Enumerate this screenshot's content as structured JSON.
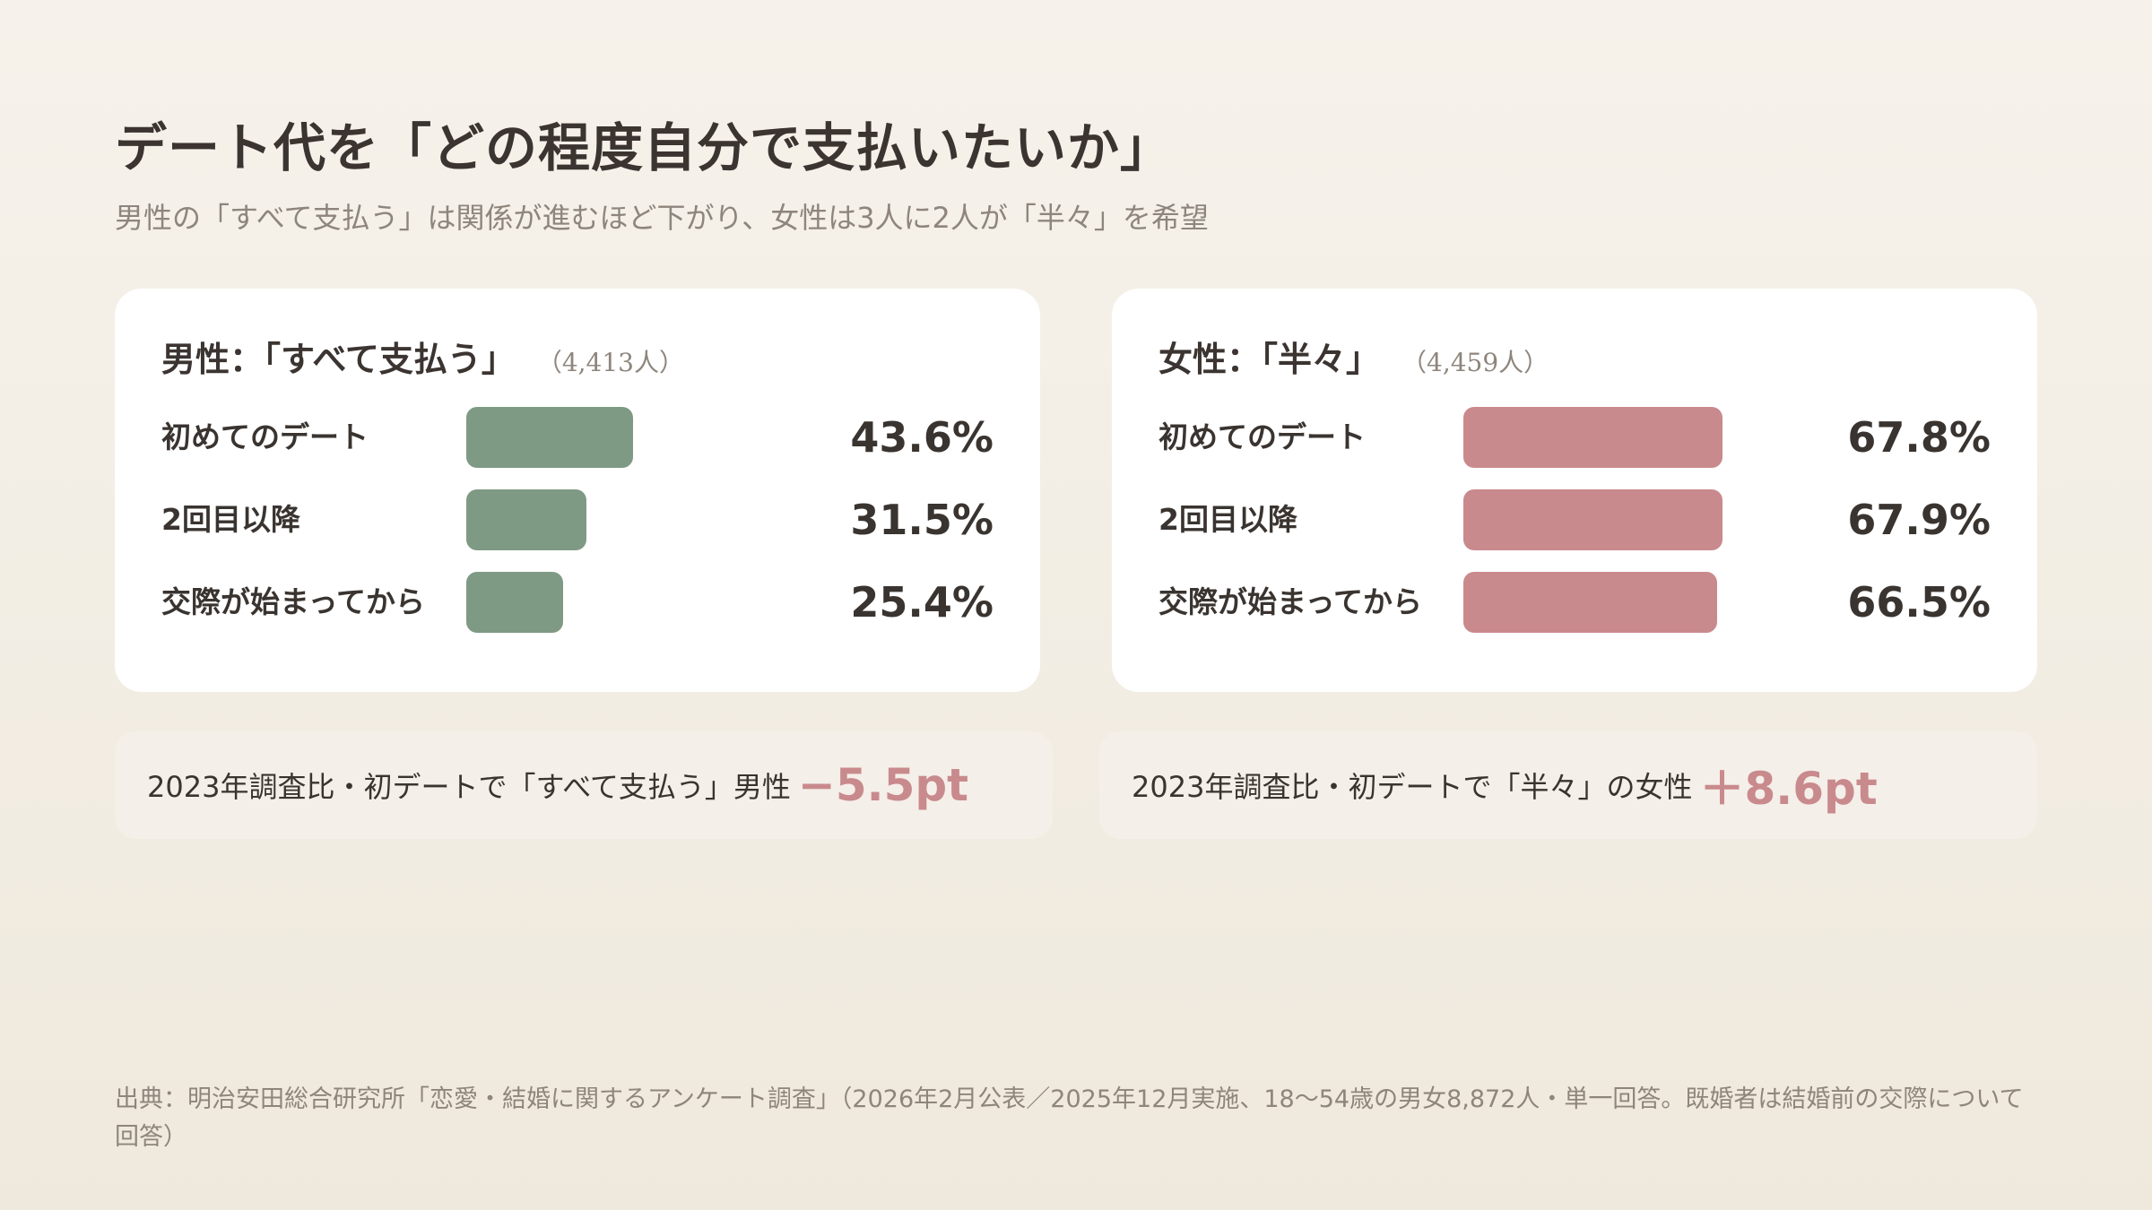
{
  "title": "デート代を「どの程度自分で支払いたいか」",
  "subtitle": "男性の「すべて支払う」は関係が進むほど下がり、女性は3人に2人が「半々」を希望",
  "colors": {
    "male_bar": "#7f9a84",
    "female_bar": "#c98a8d",
    "delta": "#c98a8d"
  },
  "chart_data": [
    {
      "type": "bar",
      "title": "男性：「すべて支払う」",
      "n_label": "（4,413人）",
      "categories": [
        "初めてのデート",
        "2回目以降",
        "交際が始まってから"
      ],
      "values": [
        43.6,
        31.5,
        25.4
      ],
      "value_labels": [
        "43.6%",
        "31.5%",
        "25.4%"
      ],
      "xlim": [
        0,
        100
      ]
    },
    {
      "type": "bar",
      "title": "女性：「半々」",
      "n_label": "（4,459人）",
      "categories": [
        "初めてのデート",
        "2回目以降",
        "交際が始まってから"
      ],
      "values": [
        67.8,
        67.9,
        66.5
      ],
      "value_labels": [
        "67.8%",
        "67.9%",
        "66.5%"
      ],
      "xlim": [
        0,
        100
      ]
    }
  ],
  "notes": {
    "male_text": "2023年調査比・初デートで「すべて支払う」男性",
    "male_delta": "−5.5pt",
    "female_text": "2023年調査比・初デートで「半々」の女性",
    "female_delta": "＋8.6pt"
  },
  "source": "出典：明治安田総合研究所「恋愛・結婚に関するアンケート調査」（2026年2月公表／2025年12月実施、18〜54歳の男女8,872人・単一回答。既婚者は結婚前の交際について回答）"
}
